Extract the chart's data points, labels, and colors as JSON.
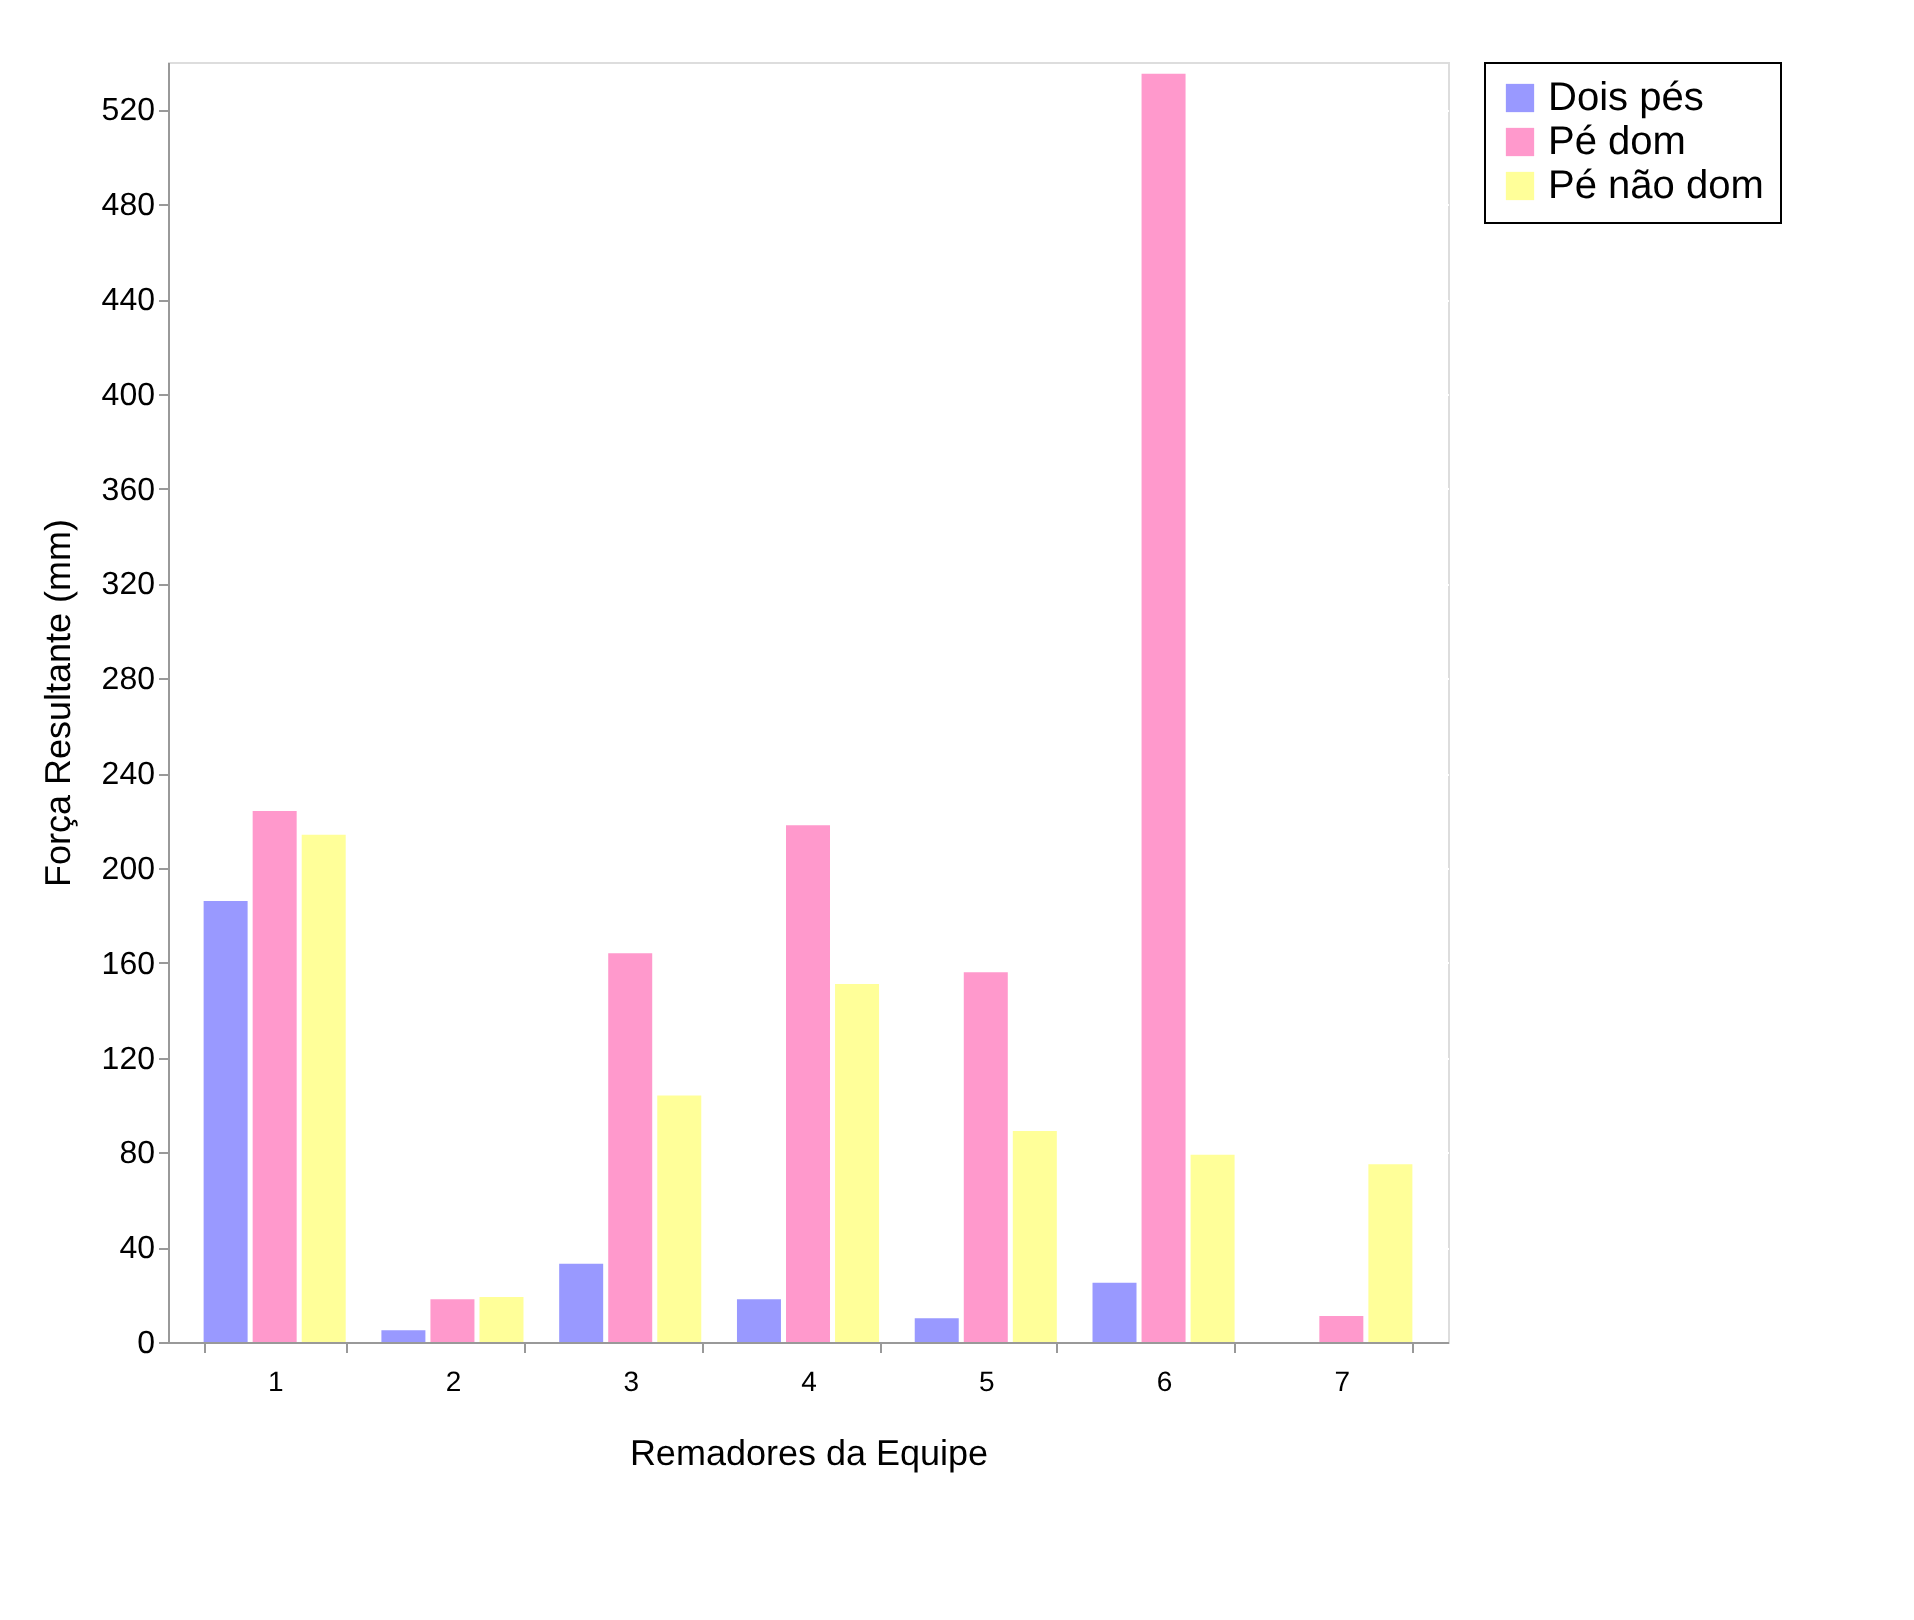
{
  "chart_data": {
    "type": "bar",
    "xlabel": "Remadores da Equipe",
    "ylabel": "Força Resultante (mm)",
    "categories": [
      "1",
      "2",
      "3",
      "4",
      "5",
      "6",
      "7"
    ],
    "series": [
      {
        "name": "Dois pés",
        "color": "#9999ff",
        "values": [
          186,
          5,
          33,
          18,
          10,
          25,
          0
        ]
      },
      {
        "name": "Pé dom",
        "color": "#ff99cc",
        "values": [
          224,
          18,
          164,
          218,
          156,
          535,
          11
        ]
      },
      {
        "name": "Pé não dom",
        "color": "#ffff99",
        "values": [
          214,
          19,
          104,
          151,
          89,
          79,
          75
        ]
      }
    ],
    "ylim": [
      0,
      540
    ],
    "yticks": [
      0,
      40,
      80,
      120,
      160,
      200,
      240,
      280,
      320,
      360,
      400,
      440,
      480,
      520
    ],
    "grid": "y",
    "legend": "right"
  }
}
